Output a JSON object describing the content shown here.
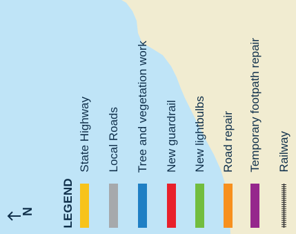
{
  "map": {
    "colors": {
      "water": "#bfe4f7",
      "land": "#f1ecd1",
      "text": "#0f2f4a"
    }
  },
  "north_arrow": {
    "icon": "north-arrow-icon",
    "label": "N"
  },
  "legend": {
    "title": "LEGEND",
    "items": [
      {
        "label": "State Highway",
        "color": "#f7c31a"
      },
      {
        "label": "Local Roads",
        "color": "#a6a9ac"
      },
      {
        "label": "Tree and vegetation work",
        "color": "#1f7fc4"
      },
      {
        "label": "New guardrail",
        "color": "#e8202b"
      },
      {
        "label": "New lightbulbs",
        "color": "#72bd3f"
      },
      {
        "label": "Road repair",
        "color": "#f7901e"
      },
      {
        "label": "Temporary footpath repair",
        "color": "#95278c"
      },
      {
        "label": "Railway",
        "color": "#333333",
        "style": "railway"
      }
    ]
  }
}
